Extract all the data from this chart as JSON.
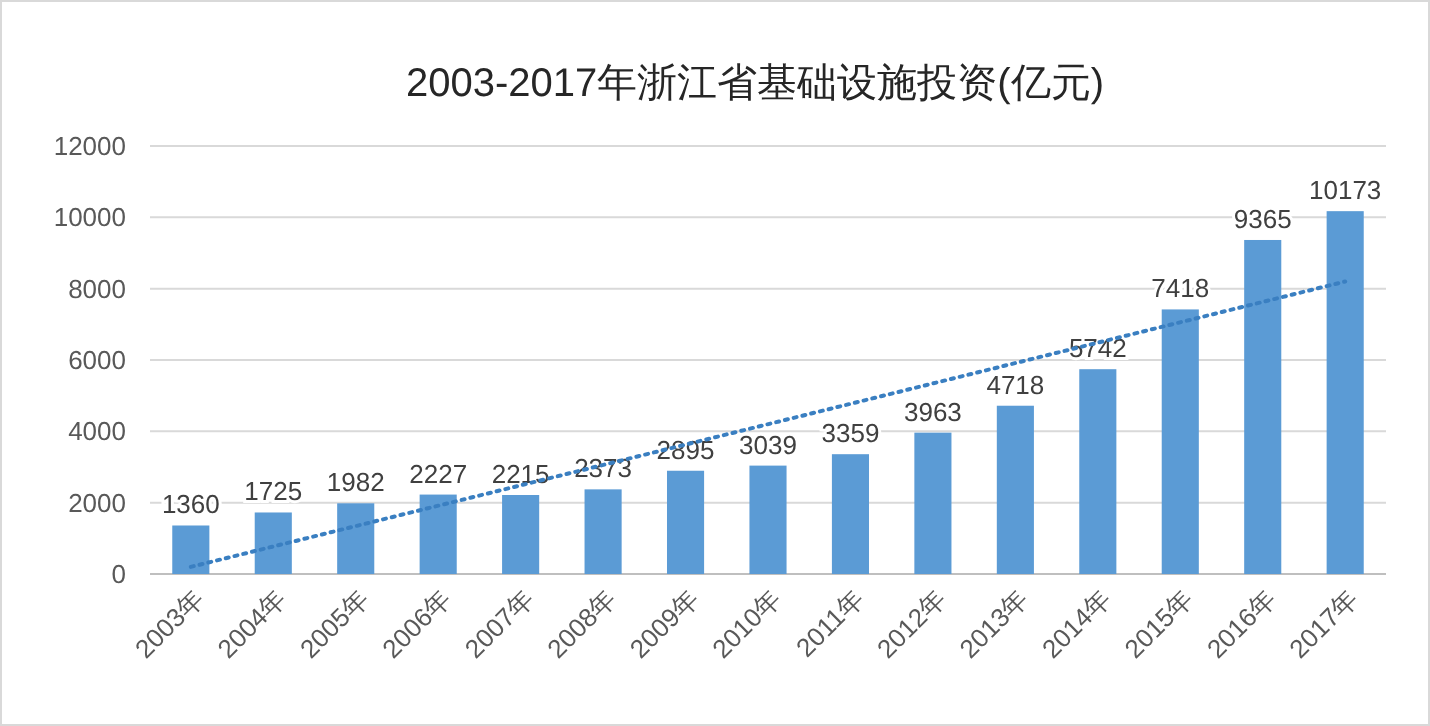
{
  "chart_data": {
    "type": "bar",
    "title": "2003-2017年浙江省基础设施投资(亿元)",
    "categories": [
      "2003年",
      "2004年",
      "2005年",
      "2006年",
      "2007年",
      "2008年",
      "2009年",
      "2010年",
      "2011年",
      "2012年",
      "2013年",
      "2014年",
      "2015年",
      "2016年",
      "2017年"
    ],
    "series": [
      {
        "color": "#5b9bd5",
        "values": [
          1360,
          1725,
          1982,
          2227,
          2215,
          2373,
          2895,
          3039,
          3359,
          3963,
          4718,
          5742,
          7418,
          9365,
          10173
        ],
        "value_labels": [
          "1360",
          "1725",
          "1982",
          "2227",
          "2215",
          "2373",
          "2895",
          "3039",
          "3359",
          "3963",
          "4718",
          "5742",
          "7418",
          "9365",
          "10173"
        ]
      },
      {
        "type": "line",
        "color": "#3a7fc1",
        "line_style": "dotted",
        "marker": "none",
        "x": [
          "2003年",
          "2017年"
        ],
        "values": [
          200,
          8200
        ]
      }
    ],
    "ylim": [
      0,
      12000
    ],
    "yticks": [
      0,
      2000,
      4000,
      6000,
      8000,
      10000,
      12000
    ],
    "grid": "y"
  }
}
